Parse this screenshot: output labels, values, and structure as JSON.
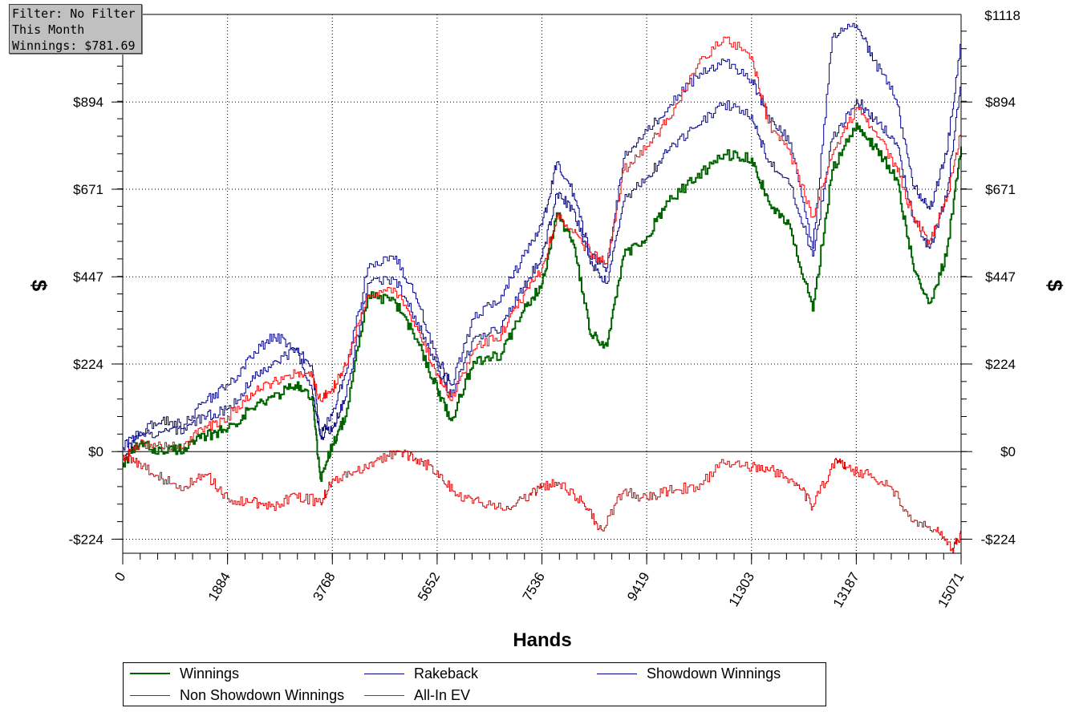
{
  "filter_box": {
    "line1": "Filter: No Filter",
    "line2": "This Month",
    "line3": "Winnings: $781.69"
  },
  "chart_data": {
    "type": "line",
    "xlabel": "Hands",
    "ylabel_left": "$",
    "ylabel_right": "$",
    "xlim": [
      0,
      15071
    ],
    "ylim": [
      -260,
      1118
    ],
    "x_ticks": [
      0,
      1884,
      3768,
      5652,
      7536,
      9419,
      11303,
      13187,
      15071
    ],
    "x_tick_labels": [
      "0",
      "1884",
      "3768",
      "5652",
      "7536",
      "9419",
      "11303",
      "13187",
      "15071"
    ],
    "y_ticks": [
      -224,
      0,
      224,
      447,
      671,
      894
    ],
    "y_tick_labels": [
      "-$224",
      "$0",
      "$224",
      "$447",
      "$671",
      "$894"
    ],
    "y_right_top_label": "$1118",
    "grid": true,
    "legend_position": "bottom",
    "series": [
      {
        "name": "Winnings",
        "color": "#006400",
        "x": [
          0,
          300,
          700,
          1100,
          1500,
          1884,
          2300,
          2700,
          3100,
          3400,
          3550,
          3768,
          4000,
          4400,
          4900,
          5300,
          5652,
          5900,
          6300,
          6800,
          7200,
          7536,
          7800,
          8100,
          8400,
          8700,
          9000,
          9419,
          9800,
          10300,
          10800,
          11303,
          11600,
          12000,
          12400,
          12750,
          13187,
          13500,
          13900,
          14200,
          14500,
          14800,
          15071
        ],
        "values": [
          -30,
          20,
          0,
          10,
          40,
          60,
          110,
          140,
          170,
          140,
          -70,
          20,
          90,
          400,
          380,
          280,
          160,
          80,
          230,
          250,
          360,
          430,
          610,
          530,
          300,
          270,
          500,
          550,
          640,
          700,
          760,
          750,
          640,
          570,
          360,
          720,
          840,
          780,
          700,
          480,
          380,
          500,
          780
        ]
      },
      {
        "name": "Rakeback",
        "color": "#000080",
        "x": [
          0,
          300,
          700,
          1100,
          1500,
          1884,
          2300,
          2700,
          3100,
          3400,
          3550,
          3768,
          4000,
          4400,
          4900,
          5300,
          5652,
          5900,
          6300,
          6800,
          7200,
          7536,
          7800,
          8100,
          8400,
          8700,
          9000,
          9419,
          9800,
          10300,
          10800,
          11303,
          11600,
          12000,
          12400,
          12750,
          13187,
          13500,
          13900,
          14200,
          14500,
          14800,
          15071
        ],
        "values": [
          -10,
          40,
          50,
          60,
          90,
          110,
          180,
          230,
          260,
          220,
          40,
          60,
          140,
          430,
          440,
          330,
          220,
          140,
          290,
          320,
          420,
          500,
          660,
          620,
          480,
          430,
          640,
          700,
          770,
          830,
          890,
          860,
          740,
          680,
          500,
          800,
          900,
          850,
          790,
          600,
          520,
          650,
          950
        ]
      },
      {
        "name": "Showdown Winnings",
        "color": "#00008b",
        "x": [
          0,
          300,
          700,
          1100,
          1500,
          1884,
          2300,
          2700,
          3100,
          3400,
          3550,
          3768,
          4000,
          4400,
          4900,
          5300,
          5652,
          5900,
          6300,
          6800,
          7200,
          7536,
          7800,
          8100,
          8400,
          8700,
          9000,
          9419,
          9800,
          10300,
          10800,
          11303,
          11600,
          12000,
          12400,
          12750,
          13187,
          13500,
          13900,
          14200,
          14500,
          14800,
          15071
        ],
        "values": [
          10,
          50,
          80,
          70,
          130,
          170,
          240,
          300,
          260,
          160,
          40,
          100,
          200,
          470,
          500,
          380,
          240,
          170,
          340,
          400,
          500,
          580,
          740,
          660,
          500,
          470,
          750,
          820,
          880,
          960,
          1000,
          950,
          860,
          790,
          520,
          1060,
          1090,
          1000,
          900,
          680,
          620,
          760,
          1050
        ]
      },
      {
        "name": "Non Showdown Winnings",
        "color": "#e00000",
        "x": [
          0,
          300,
          700,
          1100,
          1500,
          1884,
          2300,
          2700,
          3100,
          3550,
          3768,
          4200,
          4600,
          5000,
          5300,
          5652,
          6000,
          6400,
          6900,
          7300,
          7536,
          7900,
          8300,
          8600,
          9000,
          9419,
          9800,
          10300,
          10800,
          11303,
          11700,
          12100,
          12400,
          12800,
          13000,
          13400,
          13800,
          14200,
          14600,
          14900,
          15071
        ],
        "values": [
          -10,
          -30,
          -70,
          -90,
          -60,
          -120,
          -130,
          -140,
          -110,
          -130,
          -70,
          -50,
          -20,
          0,
          -20,
          -50,
          -110,
          -130,
          -140,
          -110,
          -90,
          -80,
          -140,
          -200,
          -100,
          -120,
          -100,
          -90,
          -30,
          -40,
          -50,
          -80,
          -140,
          -20,
          -40,
          -60,
          -90,
          -180,
          -200,
          -250,
          -210
        ]
      },
      {
        "name": "All-In EV",
        "color": "#ff0000",
        "x": [
          0,
          300,
          700,
          1100,
          1500,
          1884,
          2300,
          2700,
          3100,
          3400,
          3550,
          3768,
          4000,
          4400,
          4900,
          5300,
          5652,
          5900,
          6300,
          6800,
          7200,
          7536,
          7800,
          8100,
          8400,
          8700,
          9000,
          9419,
          9800,
          10300,
          10800,
          11303,
          11600,
          12000,
          12400,
          12750,
          13187,
          13500,
          13900,
          14200,
          14500,
          14800,
          15071
        ],
        "values": [
          -20,
          20,
          10,
          20,
          60,
          90,
          150,
          180,
          200,
          190,
          130,
          160,
          220,
          400,
          410,
          310,
          200,
          130,
          260,
          300,
          400,
          470,
          600,
          560,
          510,
          480,
          720,
          780,
          850,
          980,
          1060,
          1010,
          840,
          760,
          600,
          760,
          880,
          820,
          730,
          600,
          540,
          640,
          820
        ]
      }
    ]
  }
}
